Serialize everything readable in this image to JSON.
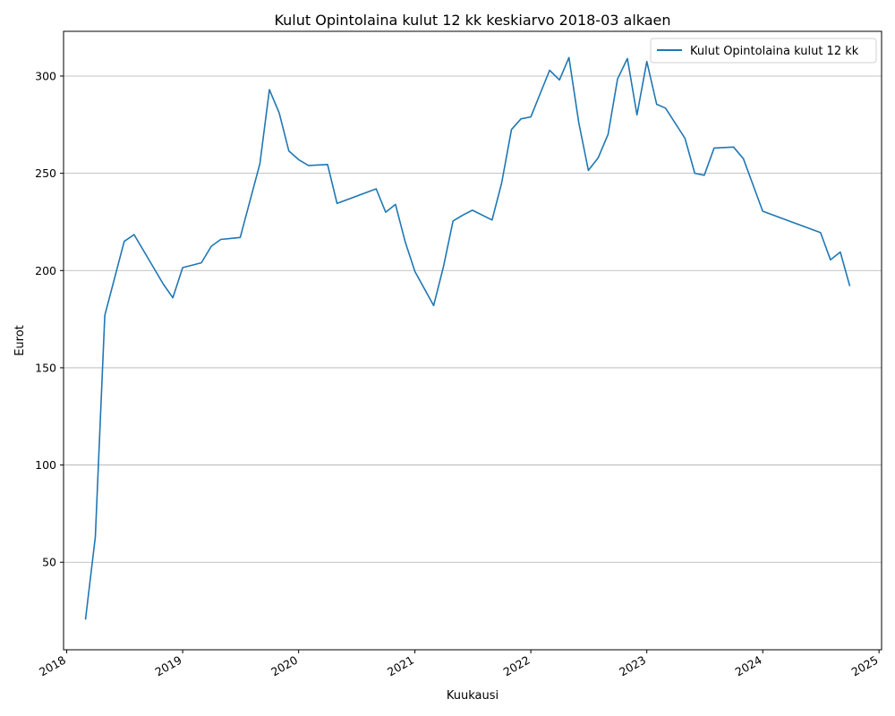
{
  "chart_data": {
    "type": "line",
    "title": "Kulut Opintolaina kulut 12 kk keskiarvo 2018-03 alkaen",
    "xlabel": "Kuukausi",
    "ylabel": "Eurot",
    "xlim": [
      "2017-12-22",
      "2025-01-09"
    ],
    "ylim": [
      5,
      323
    ],
    "grid": "y-major",
    "legend": "top-right",
    "x_ticks": [
      "2018",
      "2019",
      "2020",
      "2021",
      "2022",
      "2023",
      "2024",
      "2025"
    ],
    "y_ticks": [
      50,
      100,
      150,
      200,
      250,
      300
    ],
    "series": [
      {
        "name": "Kulut Opintolaina kulut 12 kk",
        "color": "#1f77b4",
        "points": [
          [
            "2018-03-01",
            20.5
          ],
          [
            "2018-04-01",
            63
          ],
          [
            "2018-05-01",
            177
          ],
          [
            "2018-07-01",
            215
          ],
          [
            "2018-08-01",
            218.5
          ],
          [
            "2018-11-01",
            193
          ],
          [
            "2018-12-01",
            186
          ],
          [
            "2019-01-01",
            201.5
          ],
          [
            "2019-03-01",
            204
          ],
          [
            "2019-04-01",
            212.5
          ],
          [
            "2019-05-01",
            216
          ],
          [
            "2019-07-01",
            217
          ],
          [
            "2019-09-01",
            255
          ],
          [
            "2019-10-01",
            293
          ],
          [
            "2019-11-01",
            281
          ],
          [
            "2019-12-01",
            261.5
          ],
          [
            "2020-01-01",
            257
          ],
          [
            "2020-02-01",
            254
          ],
          [
            "2020-04-01",
            254.5
          ],
          [
            "2020-05-01",
            234.5
          ],
          [
            "2020-09-01",
            242
          ],
          [
            "2020-10-01",
            230
          ],
          [
            "2020-11-01",
            234
          ],
          [
            "2020-12-01",
            215
          ],
          [
            "2021-01-01",
            199.5
          ],
          [
            "2021-03-01",
            182
          ],
          [
            "2021-04-01",
            202
          ],
          [
            "2021-05-01",
            225.5
          ],
          [
            "2021-06-01",
            228.5
          ],
          [
            "2021-07-01",
            231
          ],
          [
            "2021-09-01",
            226
          ],
          [
            "2021-10-01",
            245
          ],
          [
            "2021-11-01",
            272.5
          ],
          [
            "2021-12-01",
            278
          ],
          [
            "2022-01-01",
            279
          ],
          [
            "2022-03-01",
            303
          ],
          [
            "2022-04-01",
            298
          ],
          [
            "2022-05-01",
            309.5
          ],
          [
            "2022-06-01",
            276
          ],
          [
            "2022-07-01",
            251.5
          ],
          [
            "2022-08-01",
            258
          ],
          [
            "2022-09-01",
            270
          ],
          [
            "2022-10-01",
            298.5
          ],
          [
            "2022-11-01",
            309
          ],
          [
            "2022-12-01",
            280
          ],
          [
            "2023-01-01",
            307.5
          ],
          [
            "2023-02-01",
            285.5
          ],
          [
            "2023-03-01",
            283.5
          ],
          [
            "2023-05-01",
            268
          ],
          [
            "2023-06-01",
            250
          ],
          [
            "2023-07-01",
            249
          ],
          [
            "2023-08-01",
            263
          ],
          [
            "2023-10-01",
            263.5
          ],
          [
            "2023-11-01",
            257.5
          ],
          [
            "2024-01-01",
            230.5
          ],
          [
            "2024-07-01",
            219.5
          ],
          [
            "2024-08-01",
            205.5
          ],
          [
            "2024-09-01",
            209.5
          ],
          [
            "2024-10-01",
            192
          ]
        ]
      }
    ]
  }
}
